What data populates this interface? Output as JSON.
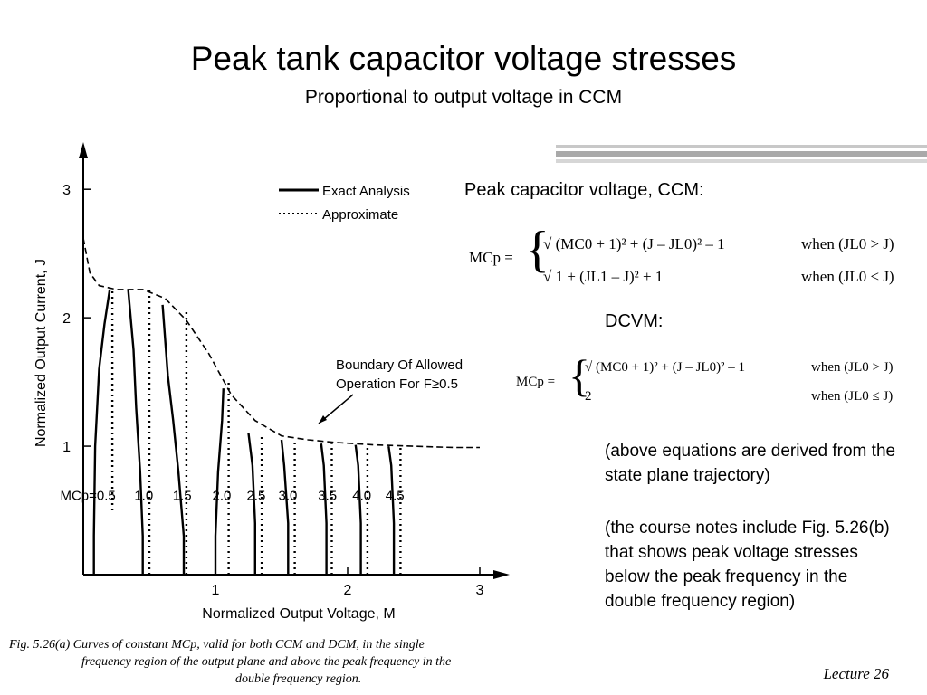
{
  "slide": {
    "title": "Peak tank capacitor voltage stresses",
    "subtitle": "Proportional to output voltage in CCM",
    "lecture": "Lecture 26"
  },
  "right_panel": {
    "ccm_heading": "Peak capacitor voltage, CCM:",
    "ccm_lhs": "MCp =",
    "ccm_case1": "√ (MC0 + 1)² + (J – JL0)² – 1",
    "ccm_case1_cond": "when (JL0 > J)",
    "ccm_case2": "√ 1 + (JL1 – J)² + 1",
    "ccm_case2_cond": "when (JL0 < J)",
    "dcvm_heading": "DCVM:",
    "dcvm_lhs": "MCp =",
    "dcvm_case1": "√ (MC0 + 1)² + (J – JL0)² – 1",
    "dcvm_case1_cond": "when (JL0 > J)",
    "dcvm_case2": "2",
    "dcvm_case2_cond": "when (JL0 ≤ J)",
    "note1": "(above equations are derived from the state plane trajectory)",
    "note2": "(the course notes include Fig. 5.26(b) that shows peak voltage stresses below the peak frequency in the double frequency region)"
  },
  "caption": {
    "line1": "Fig. 5.26(a)  Curves of constant MCp, valid for both CCM and DCM, in the single",
    "line2": "frequency region of the output plane and above the peak frequency in the",
    "line3": "double frequency region."
  },
  "chart_data": {
    "type": "line",
    "xlabel": "Normalized Output Voltage, M",
    "ylabel": "Normalized Output Current, J",
    "xlim": [
      0,
      3
    ],
    "ylim": [
      0,
      3.1
    ],
    "x_ticks": [
      "1",
      "2",
      "3"
    ],
    "y_ticks": [
      "1",
      "2",
      "3"
    ],
    "legend": {
      "placement": "top-right",
      "entries": [
        "Exact Analysis",
        "Approximate"
      ]
    },
    "annotation": {
      "text_line1": "Boundary Of Allowed",
      "text_line2": "Operation For F≥0.5"
    },
    "boundary": {
      "name": "Boundary Of Allowed Operation",
      "x": [
        0,
        0.05,
        0.12,
        0.25,
        0.45,
        0.62,
        0.78,
        0.95,
        1.12,
        1.3,
        1.5,
        1.7,
        1.9,
        2.2,
        2.5,
        2.8,
        3.0
      ],
      "y": [
        2.62,
        2.35,
        2.25,
        2.22,
        2.22,
        2.15,
        1.98,
        1.72,
        1.4,
        1.2,
        1.08,
        1.05,
        1.03,
        1.01,
        1.0,
        0.99,
        0.99
      ]
    },
    "series": [
      {
        "label": "MCp=0.5",
        "exact": {
          "x": [
            0.08,
            0.08,
            0.09,
            0.12,
            0.16,
            0.2
          ],
          "y": [
            0,
            0.3,
            1.0,
            1.6,
            1.95,
            2.22
          ]
        },
        "approx": {
          "x": [
            0.22,
            0.22
          ],
          "y": [
            0.5,
            2.22
          ]
        }
      },
      {
        "label": "1.0",
        "exact": {
          "x": [
            0.45,
            0.45,
            0.43,
            0.4,
            0.38,
            0.34
          ],
          "y": [
            0,
            0.3,
            0.8,
            1.3,
            1.75,
            2.22
          ]
        },
        "approx": {
          "x": [
            0.5,
            0.5
          ],
          "y": [
            0,
            2.22
          ]
        }
      },
      {
        "label": "1.5",
        "exact": {
          "x": [
            0.76,
            0.76,
            0.72,
            0.68,
            0.64,
            0.6
          ],
          "y": [
            0,
            0.3,
            0.8,
            1.2,
            1.55,
            2.1
          ]
        },
        "approx": {
          "x": [
            0.78,
            0.78
          ],
          "y": [
            0,
            2.05
          ]
        }
      },
      {
        "label": "2.0",
        "exact": {
          "x": [
            1.0,
            1.0,
            1.02,
            1.05,
            1.06
          ],
          "y": [
            0,
            0.3,
            0.8,
            1.2,
            1.45
          ]
        },
        "approx": {
          "x": [
            1.1,
            1.1
          ],
          "y": [
            0,
            1.5
          ]
        }
      },
      {
        "label": "2.5",
        "exact": {
          "x": [
            1.3,
            1.3,
            1.28,
            1.25
          ],
          "y": [
            0,
            0.4,
            0.85,
            1.1
          ]
        },
        "approx": {
          "x": [
            1.35,
            1.35
          ],
          "y": [
            0,
            1.1
          ]
        }
      },
      {
        "label": "3.0",
        "exact": {
          "x": [
            1.55,
            1.55,
            1.52,
            1.5
          ],
          "y": [
            0,
            0.4,
            0.85,
            1.05
          ]
        },
        "approx": {
          "x": [
            1.6,
            1.6
          ],
          "y": [
            0,
            1.05
          ]
        }
      },
      {
        "label": "3.5",
        "exact": {
          "x": [
            1.84,
            1.84,
            1.82,
            1.8
          ],
          "y": [
            0,
            0.4,
            0.85,
            1.02
          ]
        },
        "approx": {
          "x": [
            1.88,
            1.88
          ],
          "y": [
            0,
            1.02
          ]
        }
      },
      {
        "label": "4.0",
        "exact": {
          "x": [
            2.1,
            2.1,
            2.08,
            2.06
          ],
          "y": [
            0,
            0.4,
            0.85,
            1.01
          ]
        },
        "approx": {
          "x": [
            2.15,
            2.15
          ],
          "y": [
            0,
            1.01
          ]
        }
      },
      {
        "label": "4.5",
        "exact": {
          "x": [
            2.35,
            2.35,
            2.33,
            2.31
          ],
          "y": [
            0,
            0.4,
            0.85,
            1.0
          ]
        },
        "approx": {
          "x": [
            2.4,
            2.4
          ],
          "y": [
            0,
            1.0
          ]
        }
      }
    ]
  }
}
